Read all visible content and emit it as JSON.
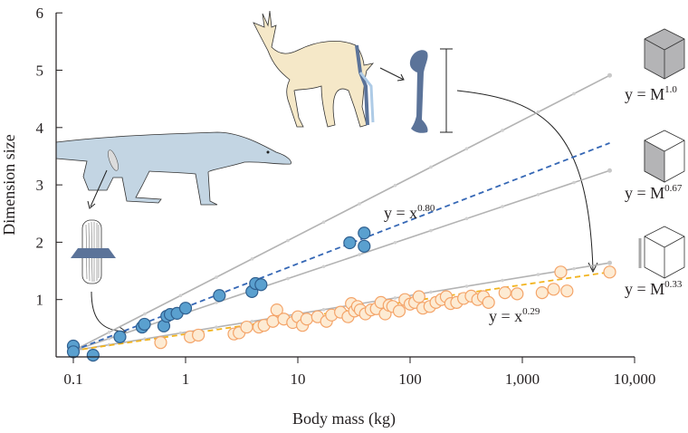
{
  "chart_data": {
    "type": "scatter",
    "title": "",
    "xlabel": "Body mass (kg)",
    "ylabel": "Dimension size",
    "xscale": "log",
    "xlim": [
      0.1,
      10000
    ],
    "ylim": [
      0,
      6
    ],
    "x_ticks": [
      0.1,
      1,
      10,
      100,
      1000,
      10000
    ],
    "x_tick_labels": [
      "0.1",
      "1",
      "10",
      "100",
      "1,000",
      "10,000"
    ],
    "y_ticks": [
      1,
      2,
      3,
      4,
      5,
      6
    ],
    "y_tick_labels": [
      "1",
      "2",
      "3",
      "4",
      "5",
      "6"
    ],
    "grid": false,
    "reference_lines": [
      {
        "name": "isometry-M1.0",
        "label_prefix": "y = M",
        "exponent_label": "1.0",
        "x": [
          0.1,
          6000
        ],
        "y": [
          0.11,
          4.91
        ],
        "color": "#b3b3b3",
        "cube": "full"
      },
      {
        "name": "isometry-M0.67",
        "label_prefix": "y = M",
        "exponent_label": "0.67",
        "x": [
          0.1,
          6000
        ],
        "y": [
          0.11,
          3.25
        ],
        "color": "#b3b3b3",
        "cube": "face"
      },
      {
        "name": "isometry-M0.33",
        "label_prefix": "y = M",
        "exponent_label": "0.33",
        "x": [
          0.1,
          6000
        ],
        "y": [
          0.11,
          1.64
        ],
        "color": "#b3b3b3",
        "cube": "edge"
      }
    ],
    "series": [
      {
        "name": "lizard",
        "fit_label_prefix": "y = x",
        "fit_exponent_label": "0.80",
        "fit_line": {
          "x": [
            0.1,
            6000
          ],
          "y": [
            0.11,
            3.73
          ]
        },
        "color_fill": "#5aa0cf",
        "color_stroke": "#2f5f8f",
        "line_color": "#3567b5",
        "points": [
          [
            0.1,
            0.19
          ],
          [
            0.1,
            0.09
          ],
          [
            0.15,
            0.03
          ],
          [
            0.26,
            0.35
          ],
          [
            0.41,
            0.52
          ],
          [
            0.43,
            0.57
          ],
          [
            0.64,
            0.54
          ],
          [
            0.68,
            0.71
          ],
          [
            0.73,
            0.74
          ],
          [
            0.84,
            0.76
          ],
          [
            1.0,
            0.85
          ],
          [
            2.0,
            1.07
          ],
          [
            3.9,
            1.14
          ],
          [
            4.2,
            1.28
          ],
          [
            4.7,
            1.26
          ],
          [
            29,
            1.99
          ],
          [
            39,
            1.93
          ],
          [
            39,
            2.16
          ]
        ]
      },
      {
        "name": "gazelle",
        "fit_label_prefix": "y = x",
        "fit_exponent_label": "0.29",
        "fit_line": {
          "x": [
            0.1,
            6000
          ],
          "y": [
            0.11,
            1.48
          ]
        },
        "color_fill": "#fdebd3",
        "color_stroke": "#f4a469",
        "line_color": "#f2b41f",
        "points": [
          [
            0.6,
            0.25
          ],
          [
            1.1,
            0.35
          ],
          [
            1.3,
            0.38
          ],
          [
            2.7,
            0.4
          ],
          [
            3.0,
            0.42
          ],
          [
            3.5,
            0.52
          ],
          [
            4.5,
            0.52
          ],
          [
            5.0,
            0.55
          ],
          [
            6.0,
            0.62
          ],
          [
            6.5,
            0.82
          ],
          [
            7.5,
            0.66
          ],
          [
            9.0,
            0.6
          ],
          [
            10,
            0.7
          ],
          [
            11,
            0.55
          ],
          [
            12,
            0.66
          ],
          [
            15,
            0.7
          ],
          [
            18,
            0.62
          ],
          [
            20,
            0.73
          ],
          [
            24,
            0.78
          ],
          [
            28,
            0.7
          ],
          [
            30,
            0.93
          ],
          [
            32,
            0.8
          ],
          [
            34,
            0.88
          ],
          [
            36,
            0.82
          ],
          [
            40,
            0.75
          ],
          [
            45,
            0.82
          ],
          [
            50,
            0.84
          ],
          [
            55,
            0.95
          ],
          [
            60,
            0.75
          ],
          [
            65,
            0.9
          ],
          [
            70,
            0.88
          ],
          [
            80,
            0.8
          ],
          [
            90,
            1.0
          ],
          [
            100,
            0.92
          ],
          [
            110,
            0.95
          ],
          [
            120,
            1.05
          ],
          [
            130,
            0.85
          ],
          [
            150,
            0.88
          ],
          [
            170,
            0.95
          ],
          [
            190,
            1.0
          ],
          [
            210,
            1.05
          ],
          [
            230,
            0.93
          ],
          [
            260,
            0.95
          ],
          [
            300,
            1.02
          ],
          [
            350,
            1.06
          ],
          [
            400,
            1.0
          ],
          [
            450,
            1.05
          ],
          [
            500,
            0.95
          ],
          [
            700,
            1.12
          ],
          [
            900,
            1.1
          ],
          [
            1500,
            1.12
          ],
          [
            1900,
            1.18
          ],
          [
            2200,
            1.48
          ],
          [
            2500,
            1.15
          ],
          [
            6000,
            1.48
          ]
        ]
      }
    ]
  },
  "cube_colors": {
    "shade": "#b4b4b6",
    "edge": "#333333",
    "highlight": "#a8a8a8"
  },
  "illustration_colors": {
    "gazelle_body": "#f5e8c8",
    "bone": "#5b7399",
    "lizard_body": "#c3d5e3",
    "outline": "#333333"
  }
}
